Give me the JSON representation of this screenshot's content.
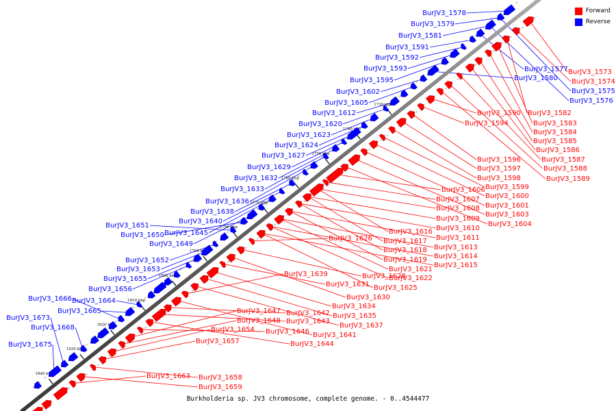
{
  "caption": "Burkholderia sp. JV3 chromosome, complete genome. - 0..4544477",
  "legend": {
    "forward_label": "Forward",
    "reverse_label": "Reverse",
    "forward_color": "#ff0000",
    "reverse_color": "#0000ff"
  },
  "ticks": [
    "1730 kbp",
    "1740 kbp",
    "1750 kbp",
    "1760 kbp",
    "1770 kbp",
    "1780 kbp",
    "1790 kbp",
    "1800 kbp",
    "1810 kbp",
    "1820 kbp",
    "1830 kbp",
    "1840 kbp"
  ],
  "reverse_genes": [
    "BurJV3_1578",
    "BurJV3_1579",
    "BurJV3_1581",
    "BurJV3_1591",
    "BurJV3_1592",
    "BurJV3_1593",
    "BurJV3_1595",
    "BurJV3_1602",
    "BurJV3_1605",
    "BurJV3_1612",
    "BurJV3_1620",
    "BurJV3_1623",
    "BurJV3_1624",
    "BurJV3_1627",
    "BurJV3_1629",
    "BurJV3_1632",
    "BurJV3_1633",
    "BurJV3_1636",
    "BurJV3_1638",
    "BurJV3_1640",
    "BurJV3_1651",
    "BurJV3_1650",
    "BurJV3_1645",
    "BurJV3_1649",
    "BurJV3_1652",
    "BurJV3_1653",
    "BurJV3_1655",
    "BurJV3_1656",
    "BurJV3_1666",
    "BurJV3_1664",
    "BurJV3_1665",
    "BurJV3_1673",
    "BurJV3_1668",
    "BurJV3_1675",
    "BurJV3_1577",
    "BurJV3_1580",
    "BurJV3_1575",
    "BurJV3_1576"
  ],
  "forward_genes": [
    "BurJV3_1573",
    "BurJV3_1574",
    "BurJV3_1582",
    "BurJV3_1583",
    "BurJV3_1584",
    "BurJV3_1585",
    "BurJV3_1586",
    "BurJV3_1587",
    "BurJV3_1588",
    "BurJV3_1589",
    "BurJV3_1590",
    "BurJV3_1594",
    "BurJV3_1596",
    "BurJV3_1597",
    "BurJV3_1598",
    "BurJV3_1599",
    "BurJV3_1600",
    "BurJV3_1601",
    "BurJV3_1603",
    "BurJV3_1604",
    "BurJV3_1606",
    "BurJV3_1607",
    "BurJV3_1608",
    "BurJV3_1609",
    "BurJV3_1610",
    "BurJV3_1611",
    "BurJV3_1613",
    "BurJV3_1614",
    "BurJV3_1615",
    "BurJV3_1616",
    "BurJV3_1617",
    "BurJV3_1618",
    "BurJV3_1619",
    "BurJV3_1621",
    "BurJV3_1622",
    "BurJV3_1625",
    "BurJV3_1626",
    "BurJV3_1628",
    "BurJV3_1630",
    "BurJV3_1631",
    "BurJV3_1634",
    "BurJV3_1635",
    "BurJV3_1637",
    "BurJV3_1639",
    "BurJV3_1641",
    "BurJV3_1642",
    "BurJV3_1643",
    "BurJV3_1644",
    "BurJV3_1646",
    "BurJV3_1647",
    "BurJV3_1648",
    "BurJV3_1654",
    "BurJV3_1657",
    "BurJV3_1658",
    "BurJV3_1659",
    "BurJV3_1663"
  ]
}
